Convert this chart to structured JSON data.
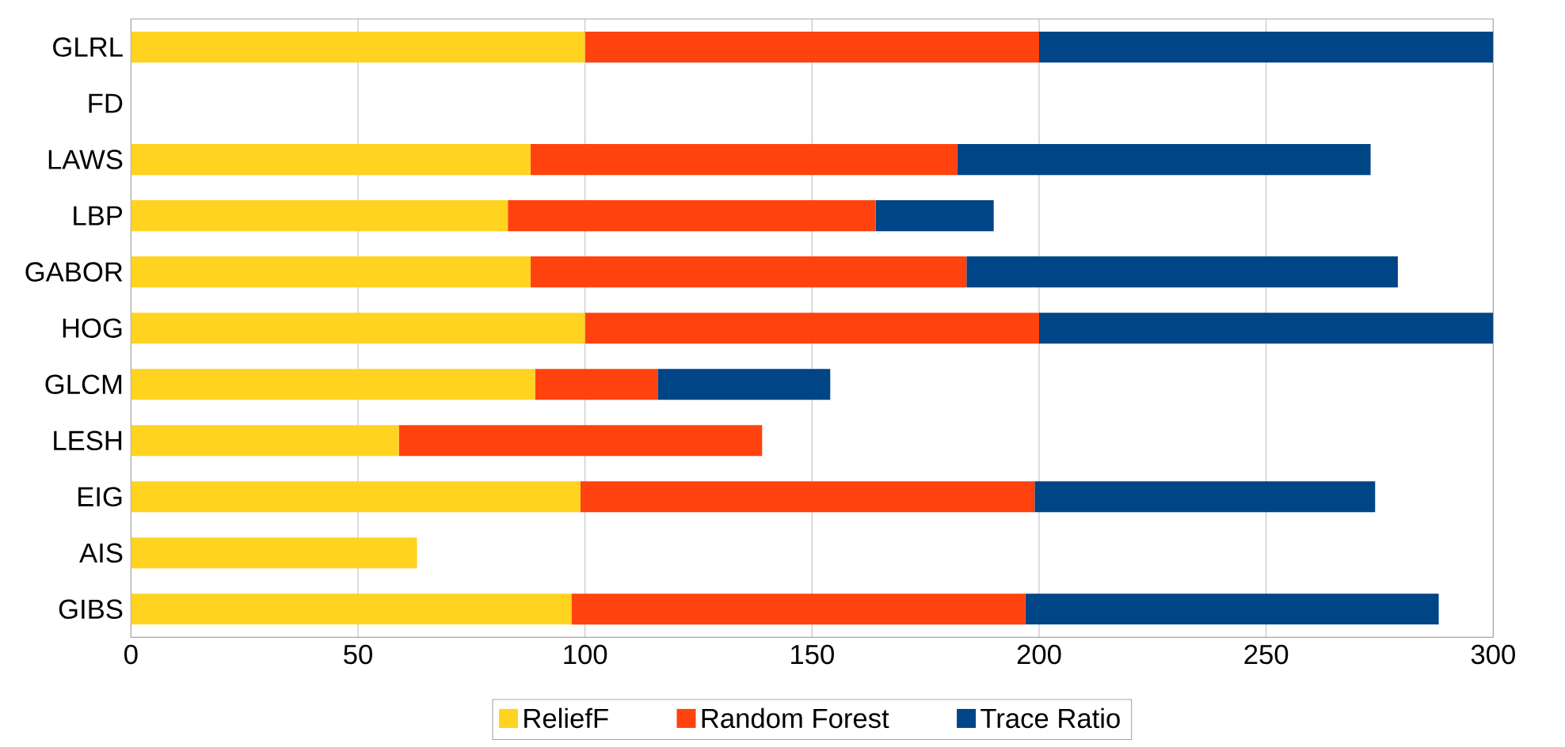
{
  "chart_data": {
    "type": "bar",
    "orientation": "horizontal",
    "stacked": true,
    "categories": [
      "GLRL",
      "FD",
      "LAWS",
      "LBP",
      "GABOR",
      "HOG",
      "GLCM",
      "LESH",
      "EIG",
      "AIS",
      "GIBS"
    ],
    "series": [
      {
        "name": "ReliefF",
        "color": "#ffd320",
        "values": [
          100,
          0,
          88,
          83,
          88,
          100,
          89,
          59,
          99,
          63,
          97
        ]
      },
      {
        "name": "Random Forest",
        "color": "#ff420e",
        "values": [
          100,
          0,
          94,
          81,
          96,
          100,
          27,
          80,
          100,
          0,
          100
        ]
      },
      {
        "name": "Trace Ratio",
        "color": "#004586",
        "values": [
          100,
          0,
          91,
          26,
          95,
          100,
          38,
          0,
          75,
          0,
          91
        ]
      }
    ],
    "xlim": [
      0,
      300
    ],
    "xticks": [
      0,
      50,
      100,
      150,
      200,
      250,
      300
    ],
    "grid": "x",
    "legend": "bottom"
  }
}
